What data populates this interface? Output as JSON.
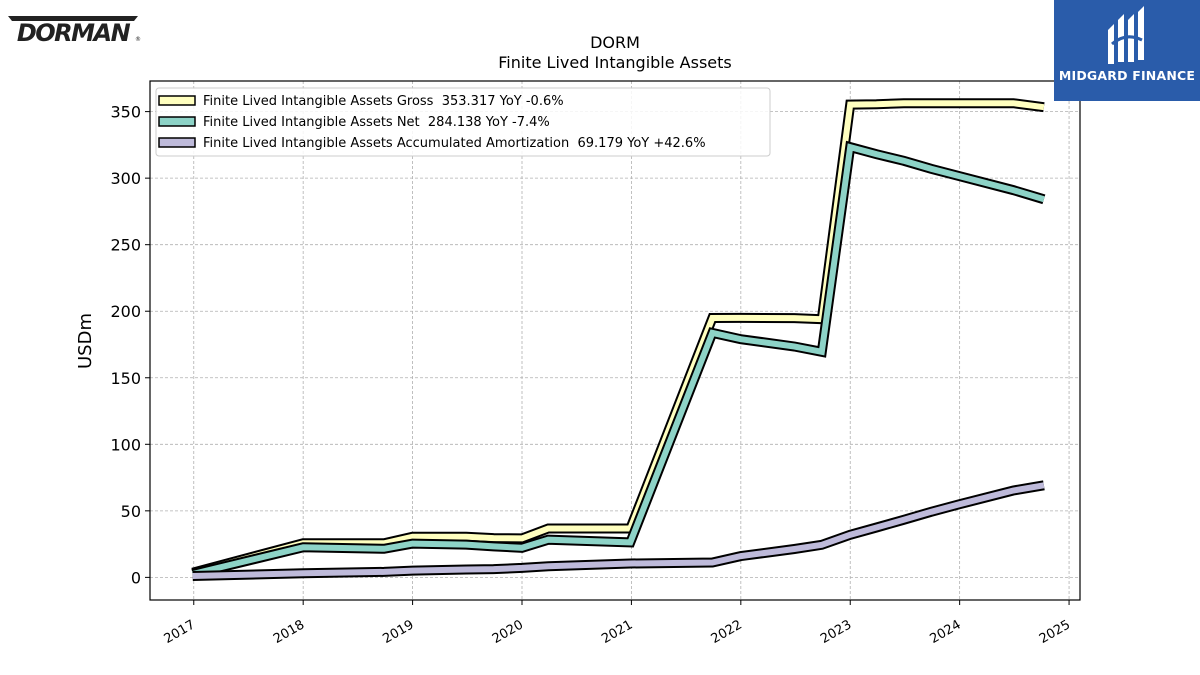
{
  "header": {
    "ticker": "DORM",
    "title": "Finite Lived Intangible Assets"
  },
  "logos": {
    "left_brand": "DORMAN",
    "right_brand": "MIDGARD FINANCE"
  },
  "colors": {
    "gross": "#ffffbf",
    "net": "#8dd3c7",
    "amortization": "#bebada",
    "outline": "#000000",
    "brand_blue": "#2a5caa"
  },
  "chart_data": {
    "type": "line",
    "title": "DORM\nFinite Lived Intangible Assets",
    "xlabel": "",
    "ylabel": "USDm",
    "xlim": [
      2016.6,
      2025.1
    ],
    "ylim": [
      -17,
      373
    ],
    "x_ticks": [
      "2017",
      "2018",
      "2019",
      "2020",
      "2021",
      "2022",
      "2023",
      "2024",
      "2025"
    ],
    "y_ticks": [
      "0",
      "50",
      "100",
      "150",
      "200",
      "250",
      "300",
      "350"
    ],
    "grid": true,
    "legend_position": "top-left",
    "series": [
      {
        "name": "Finite Lived Intangible Assets Gross  353.317 YoY -0.6%",
        "x": [
          2016.99,
          2018.0,
          2018.74,
          2019.0,
          2019.49,
          2019.74,
          2020.0,
          2020.24,
          2020.99,
          2021.74,
          2022.0,
          2022.49,
          2022.74,
          2023.0,
          2023.24,
          2023.49,
          2023.74,
          2024.0,
          2024.49,
          2024.77
        ],
        "values": [
          3.5,
          25.7,
          25.6,
          30.5,
          30.5,
          29.5,
          29.3,
          36.7,
          36.7,
          194.9,
          195.0,
          194.8,
          194.0,
          355.3,
          355.5,
          356.3,
          356.3,
          356.3,
          356.3,
          353.3
        ]
      },
      {
        "name": "Finite Lived Intangible Assets Net  284.138 YoY -7.4%",
        "x": [
          2016.99,
          2018.0,
          2018.74,
          2019.0,
          2019.49,
          2019.74,
          2020.0,
          2020.24,
          2020.99,
          2021.74,
          2022.0,
          2022.49,
          2022.74,
          2023.0,
          2023.24,
          2023.49,
          2023.74,
          2024.0,
          2024.49,
          2024.77
        ],
        "values": [
          2.5,
          22.6,
          21.5,
          25.4,
          24.6,
          23.3,
          22.2,
          28.3,
          26.3,
          183.7,
          179.0,
          173.5,
          169.5,
          323.3,
          318.0,
          313.0,
          307.0,
          301.5,
          291.0,
          284.1
        ]
      },
      {
        "name": "Finite Lived Intangible Assets Accumulated Amortization  69.179 YoY +42.6%",
        "x": [
          2016.99,
          2018.0,
          2018.74,
          2019.0,
          2019.49,
          2019.74,
          2020.0,
          2020.24,
          2020.99,
          2021.74,
          2022.0,
          2022.49,
          2022.74,
          2023.0,
          2023.24,
          2023.49,
          2023.74,
          2024.0,
          2024.49,
          2024.77
        ],
        "values": [
          1.0,
          3.1,
          4.1,
          5.1,
          5.9,
          6.2,
          7.1,
          8.4,
          10.4,
          11.2,
          16.0,
          21.3,
          24.5,
          32.0,
          37.5,
          43.3,
          49.3,
          55.0,
          65.3,
          69.2
        ]
      }
    ]
  }
}
